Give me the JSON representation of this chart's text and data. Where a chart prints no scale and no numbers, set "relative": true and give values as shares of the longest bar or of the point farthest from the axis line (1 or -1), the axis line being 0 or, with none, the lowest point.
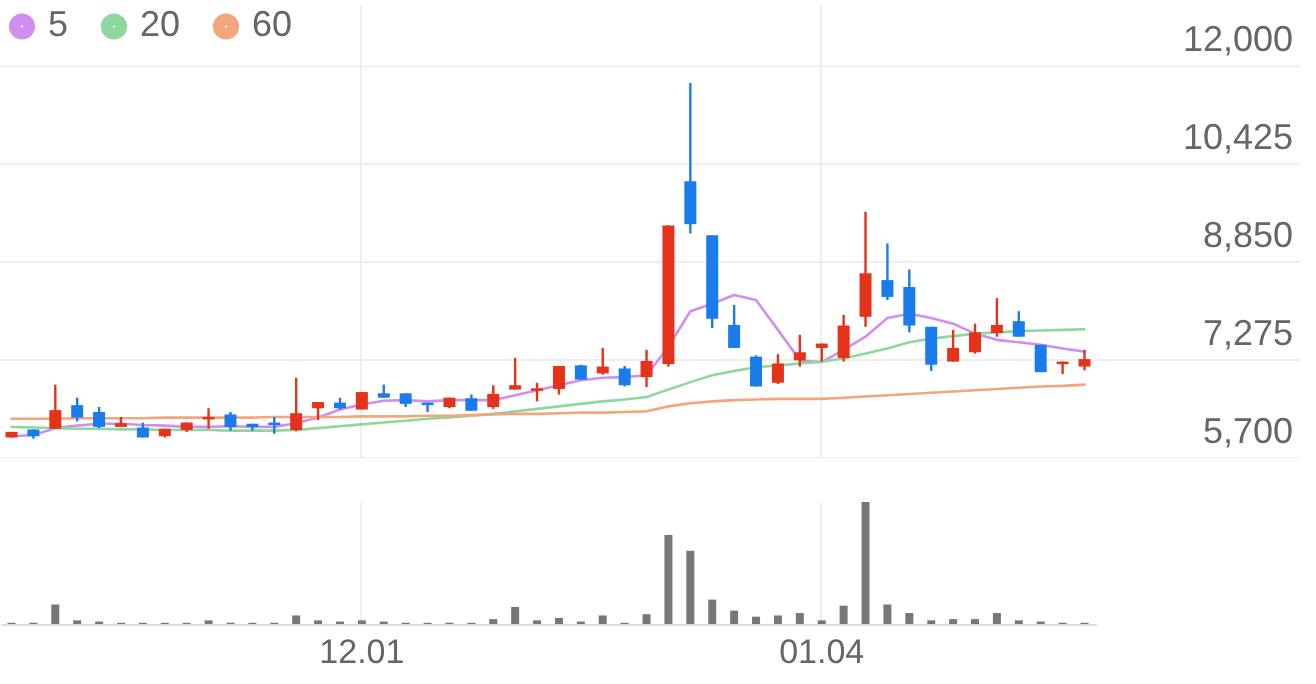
{
  "chart_data": [
    {
      "type": "candlestick",
      "categories": [
        null,
        null,
        null,
        null,
        null,
        null,
        null,
        null,
        null,
        null,
        null,
        null,
        null,
        null,
        null,
        null,
        "12.01",
        null,
        null,
        null,
        null,
        null,
        null,
        null,
        null,
        null,
        null,
        null,
        null,
        null,
        null,
        null,
        null,
        null,
        null,
        null,
        null,
        "01.04",
        null,
        null,
        null,
        null,
        null,
        null,
        null,
        null,
        null,
        null,
        null,
        null
      ],
      "ohlc": [
        [
          6030,
          6120,
          6030,
          6120
        ],
        [
          6160,
          6160,
          6010,
          6050
        ],
        [
          6170,
          6880,
          6170,
          6470
        ],
        [
          6550,
          6670,
          6290,
          6350
        ],
        [
          6440,
          6520,
          6180,
          6200
        ],
        [
          6200,
          6360,
          6200,
          6260
        ],
        [
          6190,
          6270,
          6030,
          6030
        ],
        [
          6050,
          6170,
          6030,
          6170
        ],
        [
          6150,
          6270,
          6120,
          6270
        ],
        [
          6320,
          6500,
          6170,
          6360
        ],
        [
          6400,
          6440,
          6140,
          6200
        ],
        [
          6250,
          6250,
          6140,
          6200
        ],
        [
          6270,
          6360,
          6090,
          6230
        ],
        [
          6150,
          6990,
          6130,
          6420
        ],
        [
          6500,
          6600,
          6310,
          6600
        ],
        [
          6590,
          6670,
          6480,
          6500
        ],
        [
          6480,
          6760,
          6480,
          6760
        ],
        [
          6740,
          6880,
          6670,
          6670
        ],
        [
          6740,
          6740,
          6520,
          6570
        ],
        [
          6590,
          6590,
          6440,
          6550
        ],
        [
          6520,
          6670,
          6500,
          6670
        ],
        [
          6660,
          6720,
          6460,
          6460
        ],
        [
          6520,
          6870,
          6490,
          6730
        ],
        [
          6800,
          7310,
          6800,
          6870
        ],
        [
          6780,
          6910,
          6610,
          6820
        ],
        [
          6810,
          7180,
          6720,
          7180
        ],
        [
          7190,
          7200,
          6960,
          6960
        ],
        [
          7060,
          7470,
          7040,
          7170
        ],
        [
          7140,
          7180,
          6850,
          6870
        ],
        [
          7000,
          7440,
          6840,
          7260
        ],
        [
          7210,
          9440,
          7170,
          9440
        ],
        [
          10150,
          11730,
          9310,
          9460
        ],
        [
          9280,
          9280,
          7790,
          7940
        ],
        [
          7840,
          8160,
          7470,
          7470
        ],
        [
          7330,
          7350,
          6850,
          6850
        ],
        [
          6910,
          7370,
          6890,
          7220
        ],
        [
          7270,
          7680,
          7170,
          7400
        ],
        [
          7470,
          7540,
          7250,
          7540
        ],
        [
          7310,
          8000,
          7250,
          7830
        ],
        [
          7970,
          9660,
          7810,
          8670
        ],
        [
          8560,
          9150,
          8240,
          8290
        ],
        [
          8450,
          8730,
          7720,
          7830
        ],
        [
          7810,
          7810,
          7100,
          7200
        ],
        [
          7250,
          7760,
          7250,
          7470
        ],
        [
          7400,
          7860,
          7380,
          7720
        ],
        [
          7710,
          8270,
          7650,
          7840
        ],
        [
          7900,
          8060,
          7650,
          7650
        ],
        [
          7520,
          7520,
          7080,
          7080
        ],
        [
          7210,
          7250,
          7050,
          7250
        ],
        [
          7170,
          7440,
          7110,
          7290
        ]
      ],
      "colors": [
        "#e4321b",
        "#1a7bea",
        "#e4321b",
        "#1a7bea",
        "#1a7bea",
        "#e4321b",
        "#1a7bea",
        "#e4321b",
        "#e4321b",
        "#e4321b",
        "#1a7bea",
        "#1a7bea",
        "#1a7bea",
        "#e4321b",
        "#e4321b",
        "#1a7bea",
        "#e4321b",
        "#1a7bea",
        "#1a7bea",
        "#1a7bea",
        "#e4321b",
        "#1a7bea",
        "#e4321b",
        "#e4321b",
        "#e4321b",
        "#e4321b",
        "#1a7bea",
        "#e4321b",
        "#1a7bea",
        "#e4321b",
        "#e4321b",
        "#1a7bea",
        "#1a7bea",
        "#1a7bea",
        "#1a7bea",
        "#e4321b",
        "#e4321b",
        "#e4321b",
        "#e4321b",
        "#e4321b",
        "#1a7bea",
        "#1a7bea",
        "#1a7bea",
        "#e4321b",
        "#e4321b",
        "#e4321b",
        "#1a7bea",
        "#1a7bea",
        "#e4321b",
        "#e4321b"
      ],
      "series": [
        {
          "name": "5",
          "type": "line",
          "color": "#d08ef0",
          "values": [
            6050,
            6070,
            6180,
            6220,
            6250,
            6250,
            6230,
            6220,
            6200,
            6200,
            6210,
            6200,
            6200,
            6260,
            6350,
            6480,
            6560,
            6620,
            6630,
            6610,
            6630,
            6630,
            6630,
            6710,
            6790,
            6870,
            6950,
            6990,
            7000,
            7030,
            7490,
            8060,
            8180,
            8320,
            8240,
            7760,
            7270,
            7240,
            7440,
            7650,
            7950,
            8020,
            7950,
            7860,
            7700,
            7600,
            7560,
            7520,
            7460,
            7410
          ]
        },
        {
          "name": "20",
          "type": "line",
          "color": "#8ed89d",
          "values": [
            6200,
            6190,
            6180,
            6170,
            6170,
            6160,
            6160,
            6150,
            6150,
            6150,
            6140,
            6140,
            6140,
            6150,
            6180,
            6210,
            6240,
            6270,
            6300,
            6330,
            6350,
            6380,
            6410,
            6450,
            6490,
            6530,
            6570,
            6610,
            6640,
            6680,
            6800,
            6920,
            7030,
            7100,
            7160,
            7190,
            7220,
            7250,
            7300,
            7380,
            7460,
            7560,
            7620,
            7660,
            7700,
            7720,
            7740,
            7750,
            7760,
            7770
          ]
        },
        {
          "name": "60",
          "type": "line",
          "color": "#f4a57c",
          "values": [
            6330,
            6330,
            6330,
            6340,
            6340,
            6340,
            6340,
            6350,
            6350,
            6350,
            6350,
            6350,
            6360,
            6360,
            6360,
            6360,
            6370,
            6370,
            6370,
            6380,
            6380,
            6390,
            6400,
            6410,
            6410,
            6420,
            6430,
            6430,
            6440,
            6450,
            6530,
            6580,
            6610,
            6630,
            6640,
            6650,
            6650,
            6650,
            6670,
            6690,
            6710,
            6730,
            6750,
            6770,
            6790,
            6810,
            6830,
            6850,
            6860,
            6880
          ]
        }
      ],
      "ylim": [
        5700,
        13000
      ],
      "yticks": [
        {
          "value": 5700,
          "label": "5,700"
        },
        {
          "value": 7275,
          "label": "7,275"
        },
        {
          "value": 8850,
          "label": "8,850"
        },
        {
          "value": 10425,
          "label": "10,425"
        },
        {
          "value": 12000,
          "label": "12,000"
        }
      ],
      "grid": true,
      "legend": "top left",
      "tick_labels": "y"
    },
    {
      "type": "bar",
      "categories": [
        null,
        null,
        null,
        null,
        null,
        null,
        null,
        null,
        null,
        null,
        null,
        null,
        null,
        null,
        null,
        null,
        "12.01",
        null,
        null,
        null,
        null,
        null,
        null,
        null,
        null,
        null,
        null,
        null,
        null,
        null,
        null,
        null,
        null,
        null,
        null,
        null,
        null,
        "01.04",
        null,
        null,
        null,
        null,
        null,
        null,
        null,
        null,
        null,
        null,
        null,
        null
      ],
      "values": [
        0.01,
        0.01,
        0.16,
        0.03,
        0.02,
        0.01,
        0.01,
        0.01,
        0.01,
        0.03,
        0.01,
        0.01,
        0.01,
        0.07,
        0.03,
        0.02,
        0.03,
        0.02,
        0.01,
        0.01,
        0.01,
        0.01,
        0.04,
        0.14,
        0.03,
        0.05,
        0.02,
        0.07,
        0.01,
        0.08,
        0.73,
        0.6,
        0.2,
        0.11,
        0.06,
        0.07,
        0.09,
        0.03,
        0.15,
        1,
        0.16,
        0.09,
        0.03,
        0.04,
        0.04,
        0.09,
        0.03,
        0.02,
        0.01,
        0.01
      ],
      "color": "#777777",
      "relative": true,
      "grid": "x",
      "tick_labels": "x"
    }
  ]
}
